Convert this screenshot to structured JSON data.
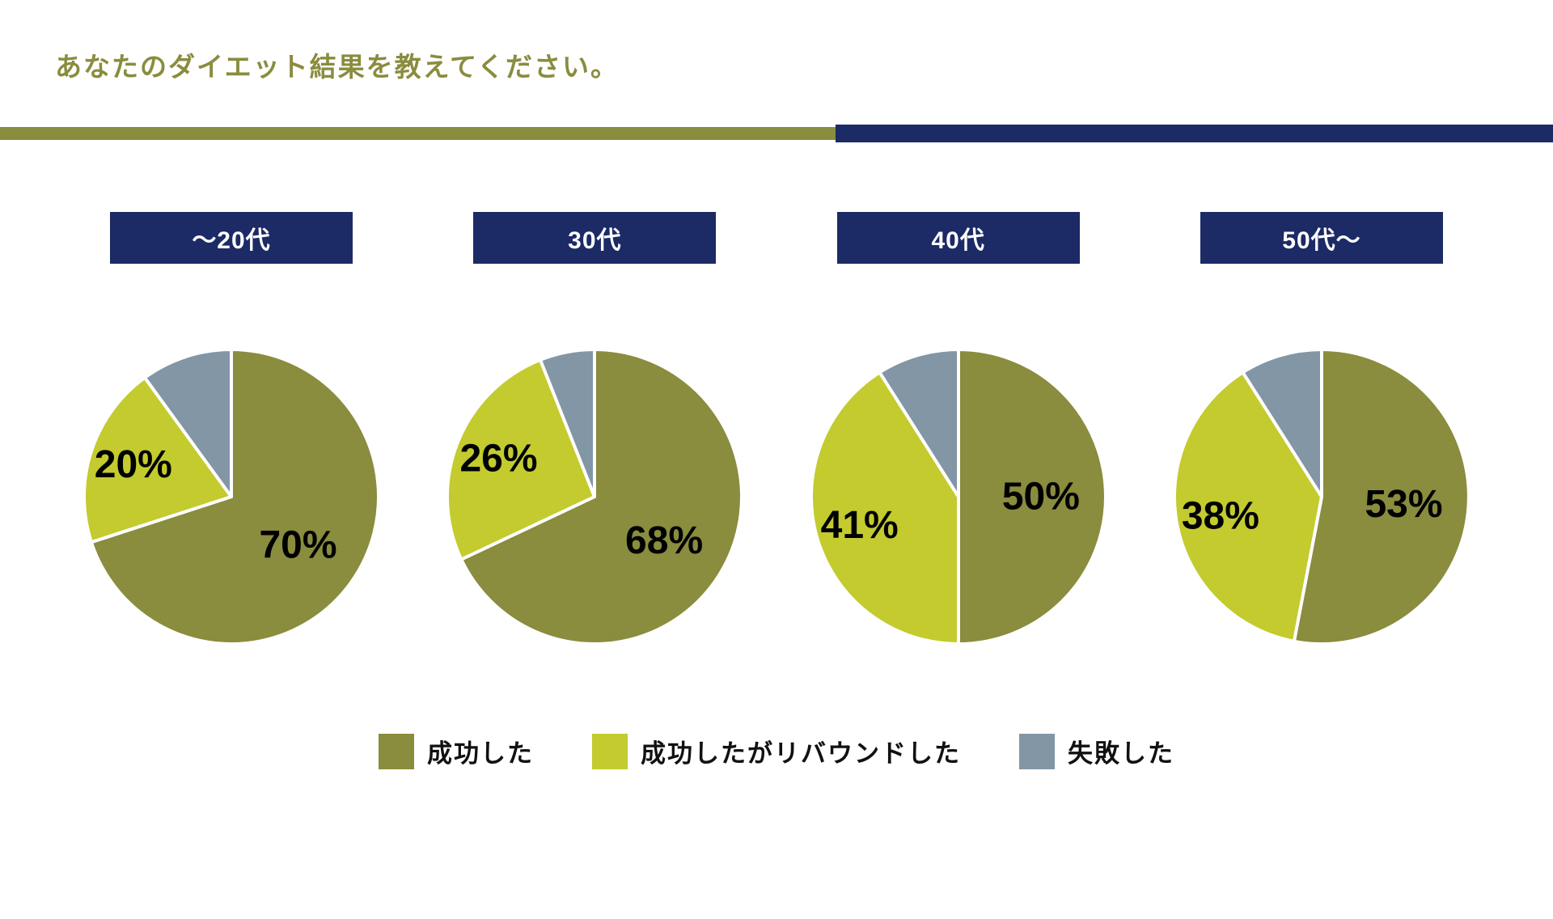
{
  "title": "あなたのダイエット結果を教えてください。",
  "colors": {
    "olive": "#8A8C3E",
    "yellow_green": "#C3CB2E",
    "blue_gray": "#8296A5",
    "navy": "#1C2A66",
    "label_text": "#000000",
    "header_text": "#FFFFFF",
    "background": "#FFFFFF"
  },
  "series": [
    {
      "name": "成功した",
      "color_key": "olive"
    },
    {
      "name": "成功したがリバウンドした",
      "color_key": "yellow_green"
    },
    {
      "name": "失敗した",
      "color_key": "blue_gray"
    }
  ],
  "chart_data": [
    {
      "type": "pie",
      "group": "～20代",
      "categories": [
        "成功した",
        "成功したがリバウンドした",
        "失敗した"
      ],
      "values": [
        70,
        20,
        10
      ],
      "value_labels": [
        "70%",
        "20%",
        ""
      ],
      "start_angle_deg": 0,
      "direction": "clockwise",
      "legend_position": "bottom"
    },
    {
      "type": "pie",
      "group": "30代",
      "categories": [
        "成功した",
        "成功したがリバウンドした",
        "失敗した"
      ],
      "values": [
        68,
        26,
        6
      ],
      "value_labels": [
        "68%",
        "26%",
        ""
      ],
      "start_angle_deg": 0,
      "direction": "clockwise",
      "legend_position": "bottom"
    },
    {
      "type": "pie",
      "group": "40代",
      "categories": [
        "成功した",
        "成功したがリバウンドした",
        "失敗した"
      ],
      "values": [
        50,
        41,
        9
      ],
      "value_labels": [
        "50%",
        "41%",
        ""
      ],
      "start_angle_deg": 0,
      "direction": "clockwise",
      "legend_position": "bottom"
    },
    {
      "type": "pie",
      "group": "50代～",
      "categories": [
        "成功した",
        "成功したがリバウンドした",
        "失敗した"
      ],
      "values": [
        53,
        38,
        9
      ],
      "value_labels": [
        "53%",
        "38%",
        ""
      ],
      "start_angle_deg": 0,
      "direction": "clockwise",
      "legend_position": "bottom"
    }
  ]
}
